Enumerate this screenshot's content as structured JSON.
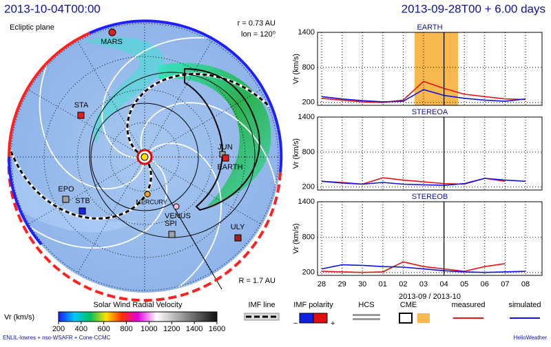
{
  "header": {
    "time": "2013-10-04T00:00",
    "run": "2013-09-28T00 + 6.00 days"
  },
  "map": {
    "plane": "Ecliptic plane",
    "r": "r = 0.73 AU",
    "lon": "lon = 120⁰",
    "R": "R = 1.7 AU",
    "bodies": [
      "MARS",
      "STA",
      "EPO",
      "STB",
      "MERCURY",
      "VENUS",
      "SPI",
      "ULY",
      "JUN",
      "EARTH"
    ]
  },
  "chart_data": [
    {
      "type": "line",
      "title": "EARTH",
      "ylabel": "Vr (km/s)",
      "x": [
        "2013-09-28",
        "2013-09-29",
        "2013-09-30",
        "2013-10-01",
        "2013-10-02",
        "2013-10-03",
        "2013-10-04",
        "2013-10-05",
        "2013-10-06",
        "2013-10-07",
        "2013-10-08"
      ],
      "series": [
        {
          "name": "measured",
          "color": "#e81010",
          "values": [
            270,
            240,
            210,
            200,
            240,
            560,
            440,
            340,
            300,
            260,
            250
          ]
        },
        {
          "name": "simulated",
          "color": "#1010e0",
          "values": [
            300,
            260,
            230,
            210,
            220,
            420,
            320,
            270,
            240,
            220,
            260
          ]
        }
      ],
      "xlim": [
        "2013-09-28",
        "2013-10-08"
      ],
      "ylim": [
        150,
        1400
      ],
      "yticks": [
        200,
        800,
        1400
      ],
      "xticks": [
        "2013-09-28",
        "2013-09-29",
        "2013-09-30",
        "2013-10-01",
        "2013-10-02",
        "2013-10-03",
        "2013-10-04",
        "2013-10-05",
        "2013-10-06",
        "2013-10-07",
        "2013-10-08"
      ],
      "grid": true
    },
    {
      "type": "line",
      "title": "STEREOA",
      "ylabel": "Vr (km/s)",
      "x": [
        "2013-09-28",
        "2013-09-29",
        "2013-09-30",
        "2013-10-01",
        "2013-10-02",
        "2013-10-03",
        "2013-10-04",
        "2013-10-05",
        "2013-10-06",
        "2013-10-07",
        "2013-10-08"
      ],
      "series": [
        {
          "color": "#e81010",
          "values": [
            300,
            280,
            250,
            360,
            320,
            290,
            260,
            250,
            350,
            300,
            null
          ]
        },
        {
          "color": "#1010e0",
          "values": [
            300,
            270,
            250,
            280,
            250,
            240,
            230,
            260,
            350,
            320,
            300
          ]
        }
      ],
      "xlim": [
        "2013-09-28",
        "2013-10-08"
      ],
      "ylim": [
        150,
        1400
      ],
      "yticks": [
        200,
        800,
        1400
      ],
      "xticks": [
        "2013-09-28",
        "2013-09-29",
        "2013-09-30",
        "2013-10-01",
        "2013-10-02",
        "2013-10-03",
        "2013-10-04",
        "2013-10-05",
        "2013-10-06",
        "2013-10-07",
        "2013-10-08"
      ],
      "grid": true
    },
    {
      "type": "line",
      "title": "STEREOB",
      "ylabel": "Vr (km/s)",
      "xlabel": "2013-09 / 2013-10",
      "x": [
        "2013-09-28",
        "2013-09-29",
        "2013-09-30",
        "2013-10-01",
        "2013-10-02",
        "2013-10-03",
        "2013-10-04",
        "2013-10-05",
        "2013-10-06",
        "2013-10-07",
        "2013-10-08"
      ],
      "series": [
        {
          "color": "#e81010",
          "values": [
            220,
            210,
            200,
            210,
            380,
            300,
            260,
            220,
            300,
            350,
            null
          ]
        },
        {
          "color": "#1010e0",
          "values": [
            260,
            330,
            320,
            300,
            290,
            260,
            230,
            210,
            200,
            210,
            220
          ]
        }
      ],
      "xlim": [
        "2013-09-28",
        "2013-10-08"
      ],
      "ylim": [
        150,
        1400
      ],
      "yticks": [
        200,
        800,
        1400
      ],
      "xticks": [
        {
          "value": "2013-09-28",
          "label": "28"
        },
        {
          "value": "2013-09-29",
          "label": "29"
        },
        {
          "value": "2013-09-30",
          "label": "30"
        },
        {
          "value": "2013-10-01",
          "label": "01"
        },
        {
          "value": "2013-10-02",
          "label": "02"
        },
        {
          "value": "2013-10-03",
          "label": "03"
        },
        {
          "value": "2013-10-04",
          "label": "04"
        },
        {
          "value": "2013-10-05",
          "label": "05"
        },
        {
          "value": "2013-10-06",
          "label": "06"
        },
        {
          "value": "2013-10-07",
          "label": "07"
        },
        {
          "value": "2013-10-08",
          "label": "08"
        }
      ],
      "grid": true
    }
  ],
  "legend": {
    "colorbar_title": "Solar Wind Radial Velocity",
    "colorbar_label": "Vr (km/s)",
    "colorbar_lim": [
      200,
      1600
    ],
    "colorbar_ticks": [
      200,
      400,
      600,
      800,
      1000,
      1200,
      1400,
      1600
    ],
    "imf_line": "IMF line",
    "imf_polarity": "IMF polarity",
    "minus": "−",
    "plus": "+",
    "hcs": "HCS",
    "cme": "CME"
  },
  "footer": {
    "left": "ENLIL-lowres + nso-WSAFR + Cone-CCMC",
    "right": "HelioWeather"
  }
}
